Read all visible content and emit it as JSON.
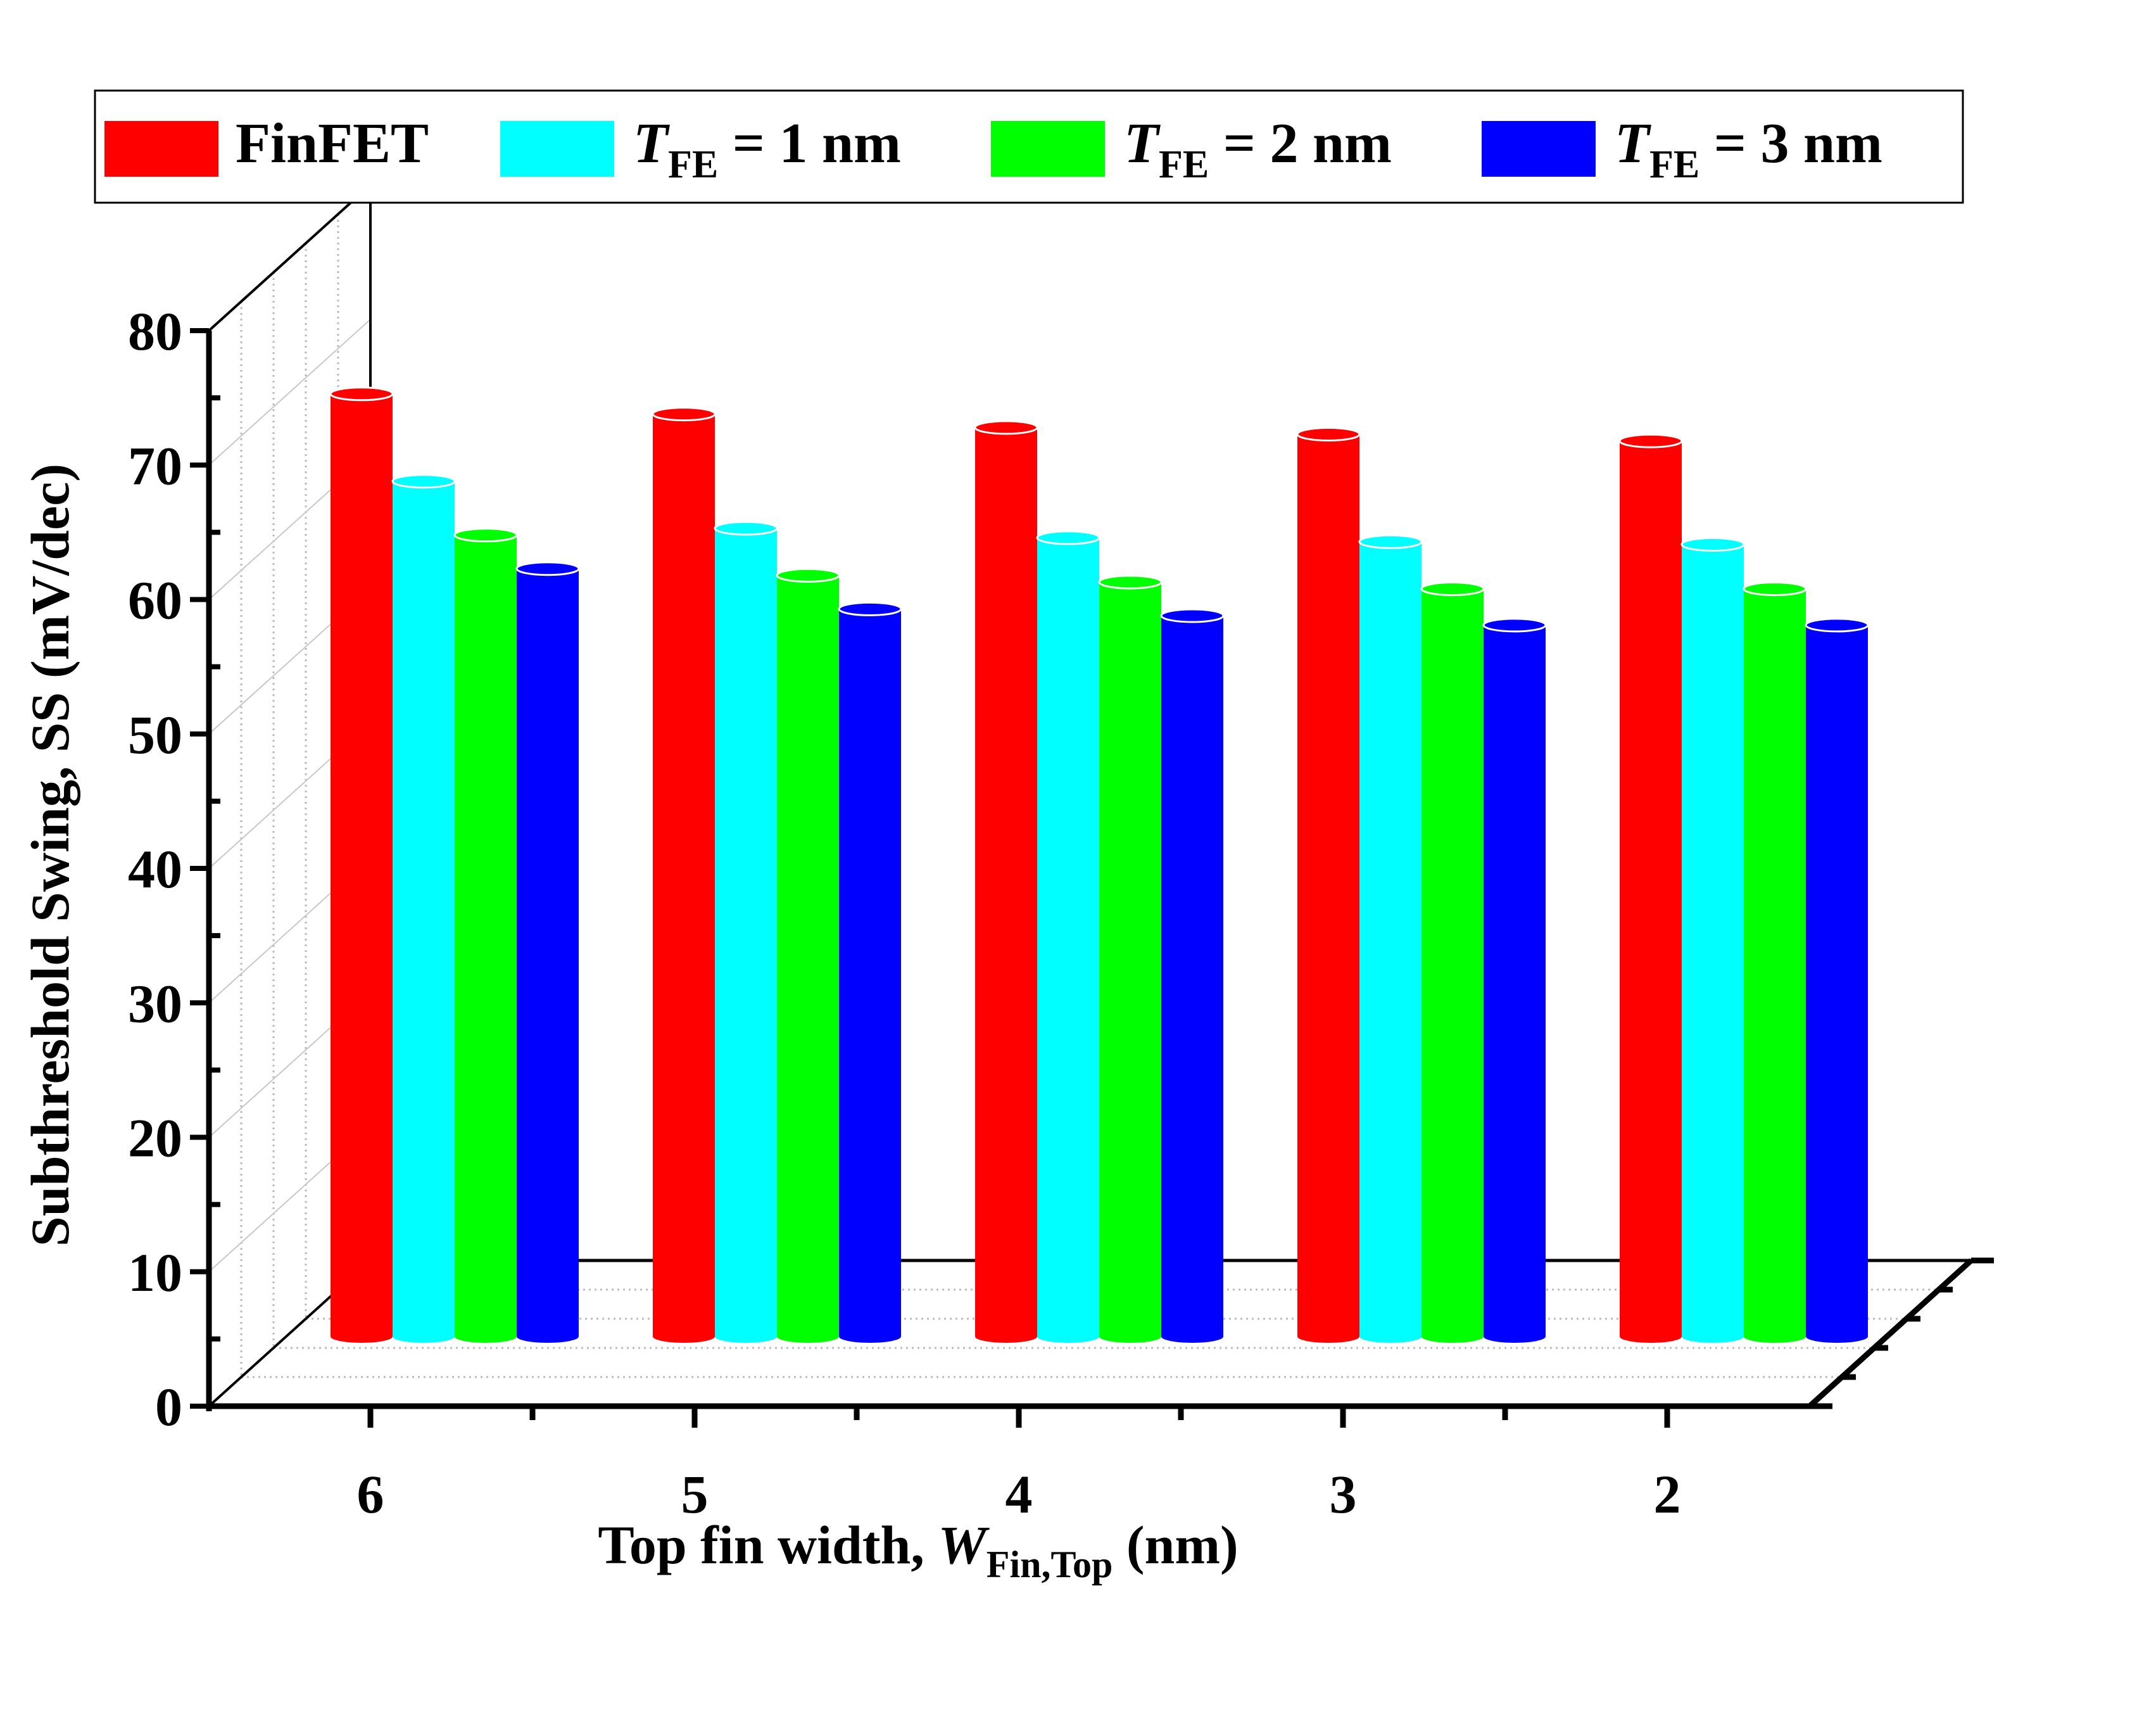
{
  "chart_data": {
    "type": "bar",
    "subtype": "3d-cylinder",
    "categories": [
      "6",
      "5",
      "4",
      "3",
      "2"
    ],
    "series": [
      {
        "name": "FinFET",
        "name_main": "FinFET",
        "name_sub": "",
        "name_tail": "",
        "color": "#ff0000",
        "values": [
          72,
          70.5,
          69.5,
          69,
          68.5
        ]
      },
      {
        "name": "T_FE = 1 nm",
        "name_main": "T",
        "name_sub": "FE",
        "name_tail": " = 1 nm",
        "color": "#00ffff",
        "values": [
          65.5,
          62,
          61.3,
          61,
          60.8
        ]
      },
      {
        "name": "T_FE = 2 nm",
        "name_main": "T",
        "name_sub": "FE",
        "name_tail": " = 2 nm",
        "color": "#00ff00",
        "values": [
          61.5,
          58.5,
          58,
          57.5,
          57.5
        ]
      },
      {
        "name": "T_FE = 3 nm",
        "name_main": "T",
        "name_sub": "FE",
        "name_tail": " = 3 nm",
        "color": "#0000ff",
        "values": [
          59,
          56,
          55.5,
          54.8,
          54.8
        ]
      }
    ],
    "ylabel": "Subthreshold Swing, SS (mV/dec)",
    "xlabel_main": "Top fin width, ",
    "xlabel_var": "W",
    "xlabel_sub": "Fin,Top",
    "xlabel_tail": " (nm)",
    "yticks": [
      "0",
      "10",
      "20",
      "30",
      "40",
      "50",
      "60",
      "70",
      "80"
    ],
    "ylim": [
      0,
      80
    ],
    "legend_position": "top",
    "grid": true
  }
}
